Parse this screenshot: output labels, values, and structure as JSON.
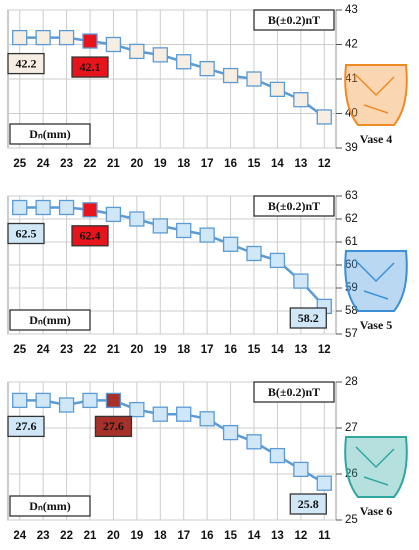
{
  "chart_data": [
    {
      "type": "line",
      "caption": "Vase 4",
      "x_label": "Dₙ(mm)",
      "y_label": "B(±0.2)nT",
      "categories": [
        "25",
        "24",
        "23",
        "22",
        "21",
        "20",
        "19",
        "18",
        "17",
        "16",
        "15",
        "14",
        "13",
        "12"
      ],
      "values": [
        42.2,
        42.2,
        42.2,
        42.1,
        42.0,
        41.8,
        41.7,
        41.5,
        41.3,
        41.1,
        41.0,
        40.7,
        40.4,
        39.9
      ],
      "value_labels": [
        "42.2",
        null,
        null,
        "42.1",
        null,
        null,
        null,
        null,
        null,
        null,
        null,
        null,
        null,
        null
      ],
      "color": "#5b9bd5",
      "marker_colors": [
        "#f6eee2",
        "#f6eee2",
        "#f6eee2",
        "#e8141b",
        "#f6eee2",
        "#f6eee2",
        "#f6eee2",
        "#f6eee2",
        "#f6eee2",
        "#f6eee2",
        "#f6eee2",
        "#f6eee2",
        "#f6eee2",
        "#f6eee2"
      ],
      "ylim": [
        39,
        43
      ],
      "yticks": [
        39,
        40,
        41,
        42,
        43
      ],
      "grid": true,
      "vase_color": "#f08a24"
    },
    {
      "type": "line",
      "caption": "Vase 5",
      "x_label": "Dₙ(mm)",
      "y_label": "B(±0.2)nT",
      "categories": [
        "25",
        "24",
        "23",
        "22",
        "21",
        "20",
        "19",
        "18",
        "17",
        "16",
        "15",
        "14",
        "13",
        "12"
      ],
      "values": [
        62.5,
        62.5,
        62.5,
        62.4,
        62.2,
        62.0,
        61.7,
        61.5,
        61.3,
        60.9,
        60.5,
        60.2,
        59.3,
        58.2
      ],
      "value_labels": [
        "62.5",
        null,
        null,
        "62.4",
        null,
        null,
        null,
        null,
        null,
        null,
        null,
        null,
        null,
        "58.2"
      ],
      "color": "#5b9bd5",
      "marker_colors": [
        "#cfe7f6",
        "#cfe7f6",
        "#cfe7f6",
        "#e8141b",
        "#cfe7f6",
        "#cfe7f6",
        "#cfe7f6",
        "#cfe7f6",
        "#cfe7f6",
        "#cfe7f6",
        "#cfe7f6",
        "#cfe7f6",
        "#cfe7f6",
        "#cfe7f6"
      ],
      "ylim": [
        57,
        63
      ],
      "yticks": [
        57,
        58,
        59,
        60,
        61,
        62,
        63
      ],
      "grid": true,
      "vase_color": "#3a8fd6"
    },
    {
      "type": "line",
      "caption": "Vase 6",
      "x_label": "Dₙ(mm)",
      "y_label": "B(±0.2)nT",
      "categories": [
        "24",
        "23",
        "22",
        "21",
        "20",
        "19",
        "18",
        "17",
        "16",
        "15",
        "14",
        "13",
        "12",
        "11"
      ],
      "values": [
        27.6,
        27.6,
        27.5,
        27.6,
        27.6,
        27.4,
        27.3,
        27.3,
        27.2,
        26.9,
        26.7,
        26.4,
        26.1,
        25.8
      ],
      "value_labels": [
        "27.6",
        null,
        null,
        null,
        "27.6",
        null,
        null,
        null,
        null,
        null,
        null,
        null,
        null,
        "25.8"
      ],
      "color": "#5b9bd5",
      "marker_colors": [
        "#cfe7f6",
        "#cfe7f6",
        "#cfe7f6",
        "#cfe7f6",
        "#a8302a",
        "#cfe7f6",
        "#cfe7f6",
        "#cfe7f6",
        "#cfe7f6",
        "#cfe7f6",
        "#cfe7f6",
        "#cfe7f6",
        "#cfe7f6",
        "#cfe7f6"
      ],
      "ylim": [
        25,
        28
      ],
      "yticks": [
        25,
        26,
        27,
        28
      ],
      "grid": true,
      "vase_color": "#2fa6a0"
    }
  ]
}
